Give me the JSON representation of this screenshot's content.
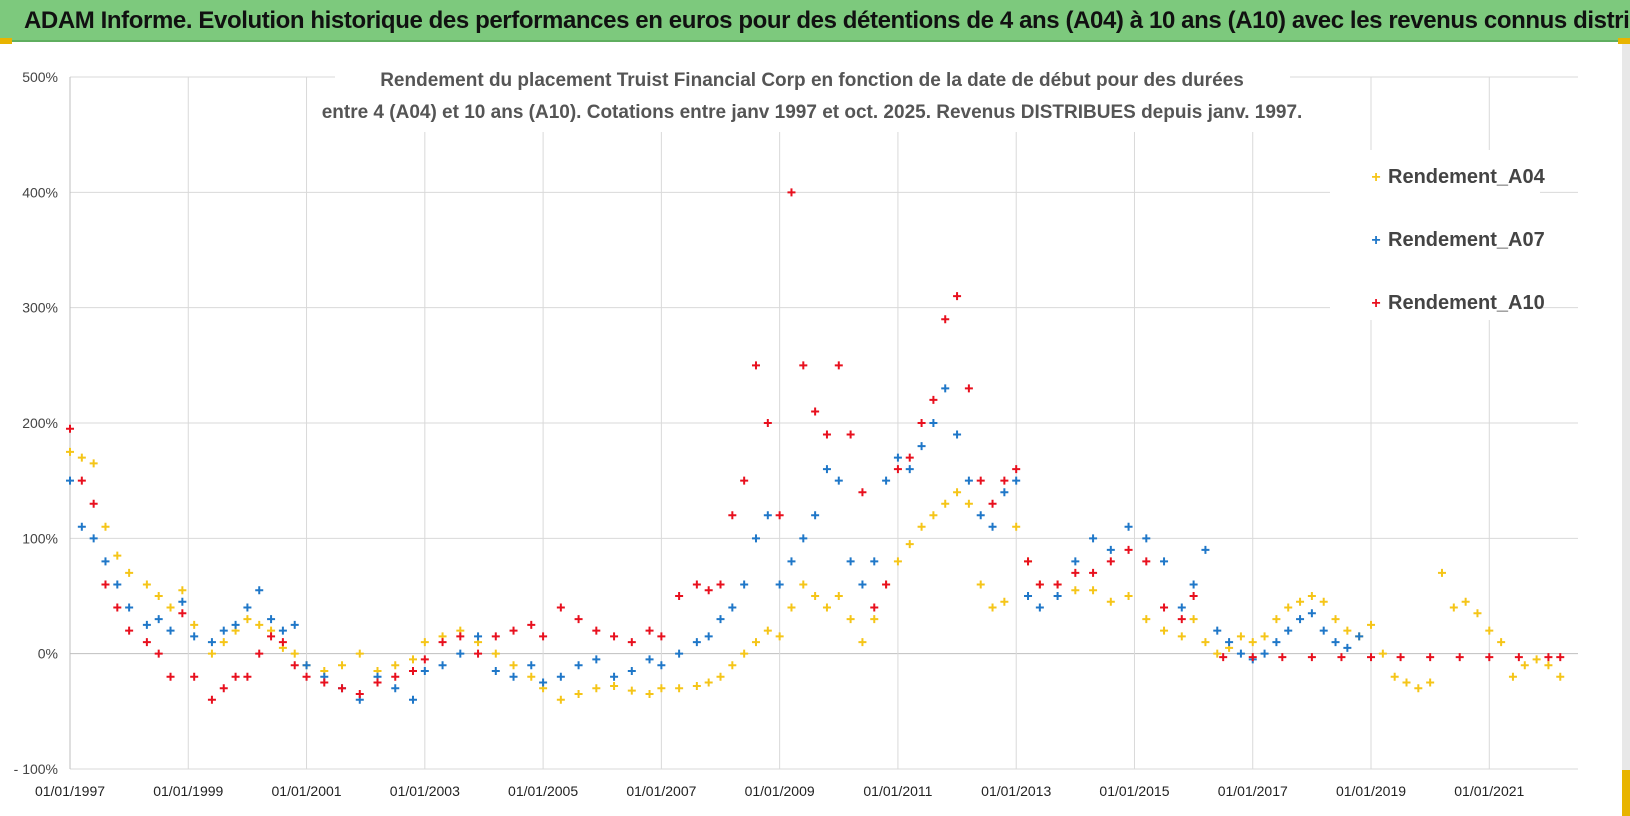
{
  "header": {
    "title": "ADAM Informe. Evolution historique des performances en euros pour des détentions de 4 ans (A04) à 10 ans (A10) avec les revenus connus distribués"
  },
  "colors": {
    "banner": "#7dc97d",
    "a04": "#f5c518",
    "a07": "#1f77c8",
    "a10": "#e8101e",
    "grid": "#d9d9d9"
  },
  "chart_data": {
    "type": "scatter",
    "title_line1": "Rendement du placement Truist Financial Corp en fonction de la date de début pour des durées",
    "title_line2": "entre 4 (A04) et 10 ans (A10). Cotations entre janv 1997 et oct. 2025.  Revenus DISTRIBUES depuis janv. 1997.",
    "xlabel": "",
    "ylabel": "",
    "ylim": [
      -100,
      500
    ],
    "xlim": [
      1997.0,
      2022.5
    ],
    "y_ticks": [
      500,
      400,
      300,
      200,
      100,
      0,
      -100
    ],
    "y_tick_labels": [
      "500%",
      "400%",
      "300%",
      "200%",
      "100%",
      "0%",
      "- 100%"
    ],
    "x_ticks": [
      1997,
      1999,
      2001,
      2003,
      2005,
      2007,
      2009,
      2011,
      2013,
      2015,
      2017,
      2019,
      2021
    ],
    "x_tick_labels": [
      "01/01/1997",
      "01/01/1999",
      "01/01/2001",
      "01/01/2003",
      "01/01/2005",
      "01/01/2007",
      "01/01/2009",
      "01/01/2011",
      "01/01/2013",
      "01/01/2015",
      "01/01/2017",
      "01/01/2019",
      "01/01/2021"
    ],
    "legend_position": "top-right",
    "series": [
      {
        "name": "Rendement_A04",
        "color": "#f5c518",
        "x": [
          1997.0,
          1997.2,
          1997.4,
          1997.6,
          1997.8,
          1998.0,
          1998.3,
          1998.5,
          1998.7,
          1998.9,
          1999.1,
          1999.4,
          1999.6,
          1999.8,
          2000.0,
          2000.2,
          2000.4,
          2000.6,
          2000.8,
          2001.0,
          2001.3,
          2001.6,
          2001.9,
          2002.2,
          2002.5,
          2002.8,
          2003.0,
          2003.3,
          2003.6,
          2003.9,
          2004.2,
          2004.5,
          2004.8,
          2005.0,
          2005.3,
          2005.6,
          2005.9,
          2006.2,
          2006.5,
          2006.8,
          2007.0,
          2007.3,
          2007.6,
          2007.8,
          2008.0,
          2008.2,
          2008.4,
          2008.6,
          2008.8,
          2009.0,
          2009.2,
          2009.4,
          2009.6,
          2009.8,
          2010.0,
          2010.2,
          2010.4,
          2010.6,
          2010.8,
          2011.0,
          2011.2,
          2011.4,
          2011.6,
          2011.8,
          2012.0,
          2012.2,
          2012.4,
          2012.6,
          2012.8,
          2013.0,
          2013.2,
          2013.4,
          2013.7,
          2014.0,
          2014.3,
          2014.6,
          2014.9,
          2015.2,
          2015.5,
          2015.8,
          2016.0,
          2016.2,
          2016.4,
          2016.6,
          2016.8,
          2017.0,
          2017.2,
          2017.4,
          2017.6,
          2017.8,
          2018.0,
          2018.2,
          2018.4,
          2018.6,
          2018.8,
          2019.0,
          2019.2,
          2019.4,
          2019.6,
          2019.8,
          2020.0,
          2020.2,
          2020.4,
          2020.6,
          2020.8,
          2021.0,
          2021.2,
          2021.4,
          2021.6,
          2021.8,
          2022.0,
          2022.2
        ],
        "values": [
          175,
          170,
          165,
          110,
          85,
          70,
          60,
          50,
          40,
          55,
          25,
          0,
          10,
          20,
          30,
          25,
          20,
          5,
          0,
          -10,
          -15,
          -10,
          0,
          -15,
          -10,
          -5,
          10,
          15,
          20,
          10,
          0,
          -10,
          -20,
          -30,
          -40,
          -35,
          -30,
          -28,
          -32,
          -35,
          -30,
          -30,
          -28,
          -25,
          -20,
          -10,
          0,
          10,
          20,
          15,
          40,
          60,
          50,
          40,
          50,
          30,
          10,
          30,
          60,
          80,
          95,
          110,
          120,
          130,
          140,
          130,
          60,
          40,
          45,
          110,
          80,
          60,
          60,
          55,
          55,
          45,
          50,
          30,
          20,
          15,
          30,
          10,
          0,
          5,
          15,
          10,
          15,
          30,
          40,
          45,
          50,
          45,
          30,
          20,
          15,
          25,
          0,
          -20,
          -25,
          -30,
          -25,
          70,
          40,
          45,
          35,
          20,
          10,
          -20,
          -10,
          -5,
          -10,
          -20
        ]
      },
      {
        "name": "Rendement_A07",
        "color": "#1f77c8",
        "x": [
          1997.0,
          1997.2,
          1997.4,
          1997.6,
          1997.8,
          1998.0,
          1998.3,
          1998.5,
          1998.7,
          1998.9,
          1999.1,
          1999.4,
          1999.6,
          1999.8,
          2000.0,
          2000.2,
          2000.4,
          2000.6,
          2000.8,
          2001.0,
          2001.3,
          2001.6,
          2001.9,
          2002.2,
          2002.5,
          2002.8,
          2003.0,
          2003.3,
          2003.6,
          2003.9,
          2004.2,
          2004.5,
          2004.8,
          2005.0,
          2005.3,
          2005.6,
          2005.9,
          2006.2,
          2006.5,
          2006.8,
          2007.0,
          2007.3,
          2007.6,
          2007.8,
          2008.0,
          2008.2,
          2008.4,
          2008.6,
          2008.8,
          2009.0,
          2009.2,
          2009.4,
          2009.6,
          2009.8,
          2010.0,
          2010.2,
          2010.4,
          2010.6,
          2010.8,
          2011.0,
          2011.2,
          2011.4,
          2011.6,
          2011.8,
          2012.0,
          2012.2,
          2012.4,
          2012.6,
          2012.8,
          2013.0,
          2013.2,
          2013.4,
          2013.7,
          2014.0,
          2014.3,
          2014.6,
          2014.9,
          2015.2,
          2015.5,
          2015.8,
          2016.0,
          2016.2,
          2016.4,
          2016.6,
          2016.8,
          2017.0,
          2017.2,
          2017.4,
          2017.6,
          2017.8,
          2018.0,
          2018.2,
          2018.4,
          2018.6,
          2018.8
        ],
        "values": [
          150,
          110,
          100,
          80,
          60,
          40,
          25,
          30,
          20,
          45,
          15,
          10,
          20,
          25,
          40,
          55,
          30,
          20,
          25,
          -10,
          -20,
          -30,
          -40,
          -20,
          -30,
          -40,
          -15,
          -10,
          0,
          15,
          -15,
          -20,
          -10,
          -25,
          -20,
          -10,
          -5,
          -20,
          -15,
          -5,
          -10,
          0,
          10,
          15,
          30,
          40,
          60,
          100,
          120,
          60,
          80,
          100,
          120,
          160,
          150,
          80,
          60,
          80,
          150,
          170,
          160,
          180,
          200,
          230,
          190,
          150,
          120,
          110,
          140,
          150,
          50,
          40,
          50,
          80,
          100,
          90,
          110,
          100,
          80,
          40,
          60,
          90,
          20,
          10,
          0,
          -5,
          0,
          10,
          20,
          30,
          35,
          20,
          10,
          5,
          15
        ]
      },
      {
        "name": "Rendement_A10",
        "color": "#e8101e",
        "x": [
          1997.0,
          1997.2,
          1997.4,
          1997.6,
          1997.8,
          1998.0,
          1998.3,
          1998.5,
          1998.7,
          1998.9,
          1999.1,
          1999.4,
          1999.6,
          1999.8,
          2000.0,
          2000.2,
          2000.4,
          2000.6,
          2000.8,
          2001.0,
          2001.3,
          2001.6,
          2001.9,
          2002.2,
          2002.5,
          2002.8,
          2003.0,
          2003.3,
          2003.6,
          2003.9,
          2004.2,
          2004.5,
          2004.8,
          2005.0,
          2005.3,
          2005.6,
          2005.9,
          2006.2,
          2006.5,
          2006.8,
          2007.0,
          2007.3,
          2007.6,
          2007.8,
          2008.0,
          2008.2,
          2008.4,
          2008.6,
          2008.8,
          2009.0,
          2009.2,
          2009.4,
          2009.6,
          2009.8,
          2010.0,
          2010.2,
          2010.4,
          2010.6,
          2010.8,
          2011.0,
          2011.2,
          2011.4,
          2011.6,
          2011.8,
          2012.0,
          2012.2,
          2012.4,
          2012.6,
          2012.8,
          2013.0,
          2013.2,
          2013.4,
          2013.7,
          2014.0,
          2014.3,
          2014.6,
          2014.9,
          2015.2,
          2015.5,
          2015.8,
          2016.0,
          2016.5,
          2017.0,
          2017.5,
          2018.0,
          2018.5,
          2019.0,
          2019.5,
          2020.0,
          2020.5,
          2021.0,
          2021.5,
          2022.0,
          2022.2
        ],
        "values": [
          195,
          150,
          130,
          60,
          40,
          20,
          10,
          0,
          -20,
          35,
          -20,
          -40,
          -30,
          -20,
          -20,
          0,
          15,
          10,
          -10,
          -20,
          -25,
          -30,
          -35,
          -25,
          -20,
          -15,
          -5,
          10,
          15,
          0,
          15,
          20,
          25,
          15,
          40,
          30,
          20,
          15,
          10,
          20,
          15,
          50,
          60,
          55,
          60,
          120,
          150,
          250,
          200,
          120,
          400,
          250,
          210,
          190,
          250,
          190,
          140,
          40,
          60,
          160,
          170,
          200,
          220,
          290,
          310,
          230,
          150,
          130,
          150,
          160,
          80,
          60,
          60,
          70,
          70,
          80,
          90,
          80,
          40,
          30,
          50,
          -3,
          -3,
          -3,
          -3,
          -3,
          -3,
          -3,
          -3,
          -3,
          -3,
          -3,
          -3,
          -3
        ]
      }
    ]
  }
}
